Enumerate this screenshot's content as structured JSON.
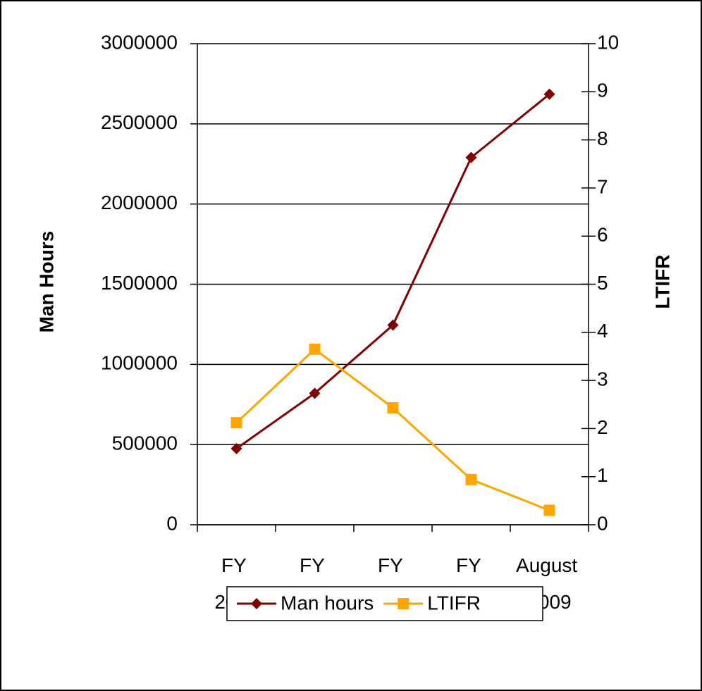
{
  "chart_data": {
    "type": "line",
    "categories": [
      "FY 2005",
      "FY 2006",
      "FY 2007",
      "FY 2008",
      "August 2009"
    ],
    "series": [
      {
        "name": "Man hours",
        "color": "#800000",
        "marker": "diamond",
        "values": [
          475000,
          820000,
          1245000,
          2290000,
          2685000
        ]
      },
      {
        "name": "LTIFR",
        "color": "#ffa500",
        "marker": "square",
        "axis": "y2",
        "values": [
          2.12,
          3.65,
          2.43,
          0.94,
          0.3
        ]
      }
    ],
    "ylabel": "Man Hours",
    "y2label": "LTIFR",
    "ylim": [
      0,
      3000000
    ],
    "yticks": [
      0,
      500000,
      1000000,
      1500000,
      2000000,
      2500000,
      3000000
    ],
    "y2lim": [
      0,
      10
    ],
    "y2ticks": [
      0,
      1,
      2,
      3,
      4,
      5,
      6,
      7,
      8,
      9,
      10
    ],
    "grid": true,
    "legend": "bottom"
  }
}
